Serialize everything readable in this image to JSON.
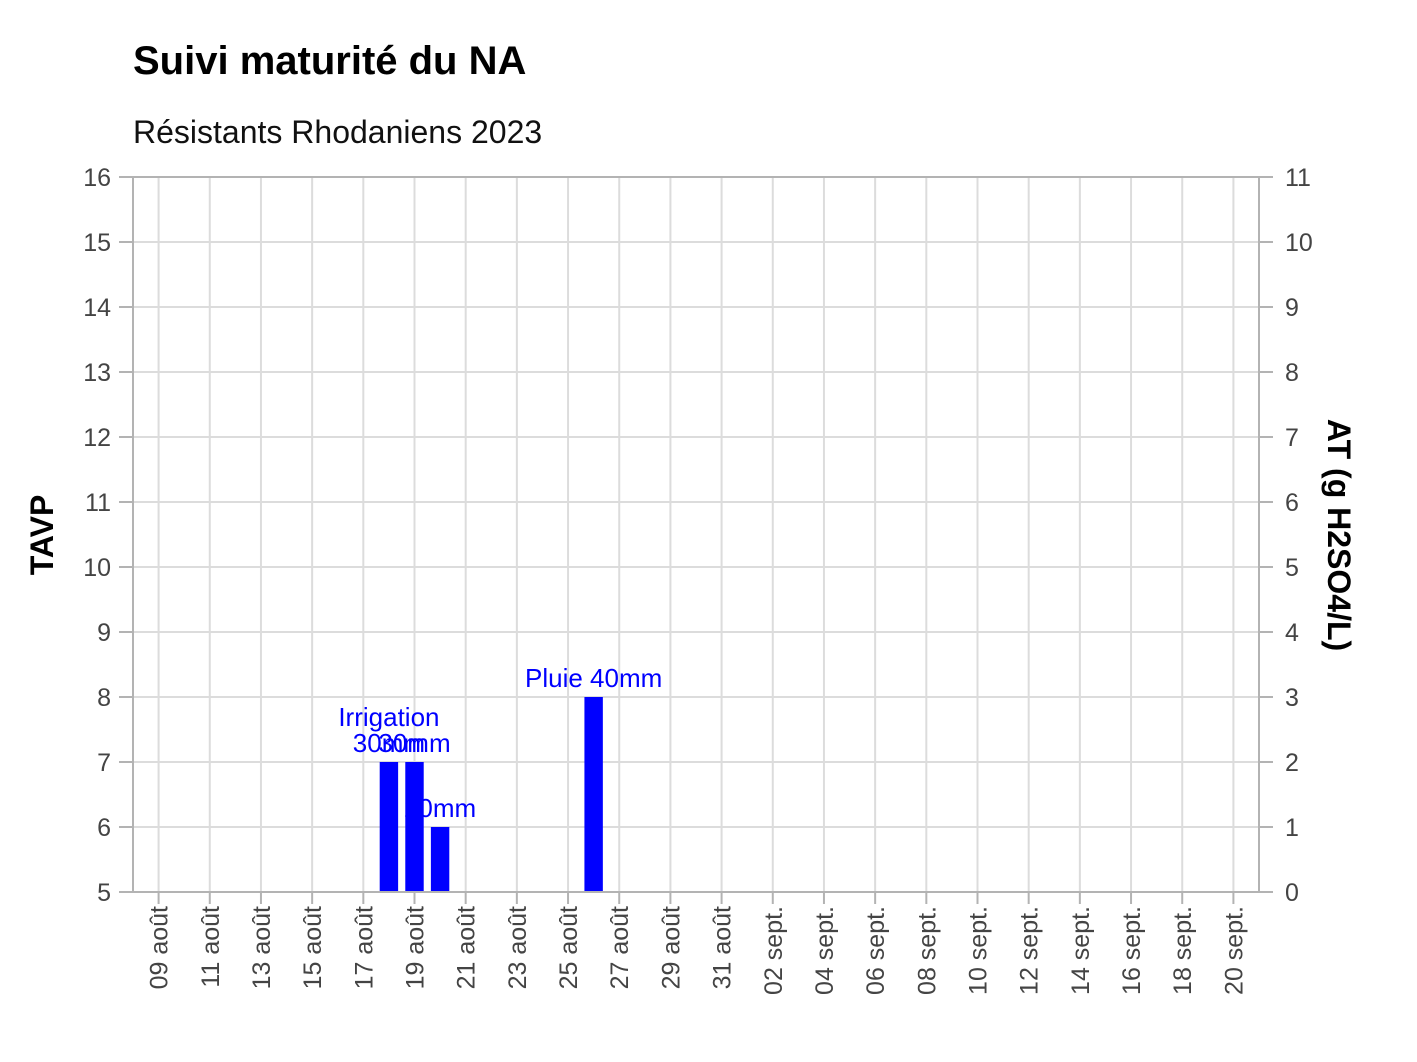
{
  "chart_data": {
    "type": "bar",
    "title": "Suivi maturité du NA",
    "subtitle": "Résistants Rhodaniens 2023",
    "ylabel": "TAVP",
    "y2label": "AT (g H2SO4/L)",
    "ylim": [
      5,
      16
    ],
    "y2lim": [
      0,
      11
    ],
    "yticks": [
      5,
      6,
      7,
      8,
      9,
      10,
      11,
      12,
      13,
      14,
      15,
      16
    ],
    "y2ticks": [
      0,
      1,
      2,
      3,
      4,
      5,
      6,
      7,
      8,
      9,
      10,
      11
    ],
    "xlim": [
      "2023-08-08",
      "2023-09-21"
    ],
    "xticks": [
      {
        "date": "2023-08-09",
        "label": "09 août"
      },
      {
        "date": "2023-08-11",
        "label": "11 août"
      },
      {
        "date": "2023-08-13",
        "label": "13 août"
      },
      {
        "date": "2023-08-15",
        "label": "15 août"
      },
      {
        "date": "2023-08-17",
        "label": "17 août"
      },
      {
        "date": "2023-08-19",
        "label": "19 août"
      },
      {
        "date": "2023-08-21",
        "label": "21 août"
      },
      {
        "date": "2023-08-23",
        "label": "23 août"
      },
      {
        "date": "2023-08-25",
        "label": "25 août"
      },
      {
        "date": "2023-08-27",
        "label": "27 août"
      },
      {
        "date": "2023-08-29",
        "label": "29 août"
      },
      {
        "date": "2023-08-31",
        "label": "31 août"
      },
      {
        "date": "2023-09-02",
        "label": "02 sept."
      },
      {
        "date": "2023-09-04",
        "label": "04 sept."
      },
      {
        "date": "2023-09-06",
        "label": "06 sept."
      },
      {
        "date": "2023-09-08",
        "label": "08 sept."
      },
      {
        "date": "2023-09-10",
        "label": "10 sept."
      },
      {
        "date": "2023-09-12",
        "label": "12 sept."
      },
      {
        "date": "2023-09-14",
        "label": "14 sept."
      },
      {
        "date": "2023-09-16",
        "label": "16 sept."
      },
      {
        "date": "2023-09-18",
        "label": "18 sept."
      },
      {
        "date": "2023-09-20",
        "label": "20 sept."
      }
    ],
    "grid": true,
    "bar_color": "#0000ff",
    "bars": [
      {
        "date": "2023-08-18",
        "value": 7,
        "label_lines": [
          "Irrigation",
          "30mm"
        ]
      },
      {
        "date": "2023-08-19",
        "value": 7,
        "label_lines": [
          "30mm"
        ]
      },
      {
        "date": "2023-08-20",
        "value": 6,
        "label_lines": [
          "20mm"
        ]
      },
      {
        "date": "2023-08-26",
        "value": 8,
        "label_lines": [
          "Pluie 40mm"
        ]
      }
    ]
  }
}
